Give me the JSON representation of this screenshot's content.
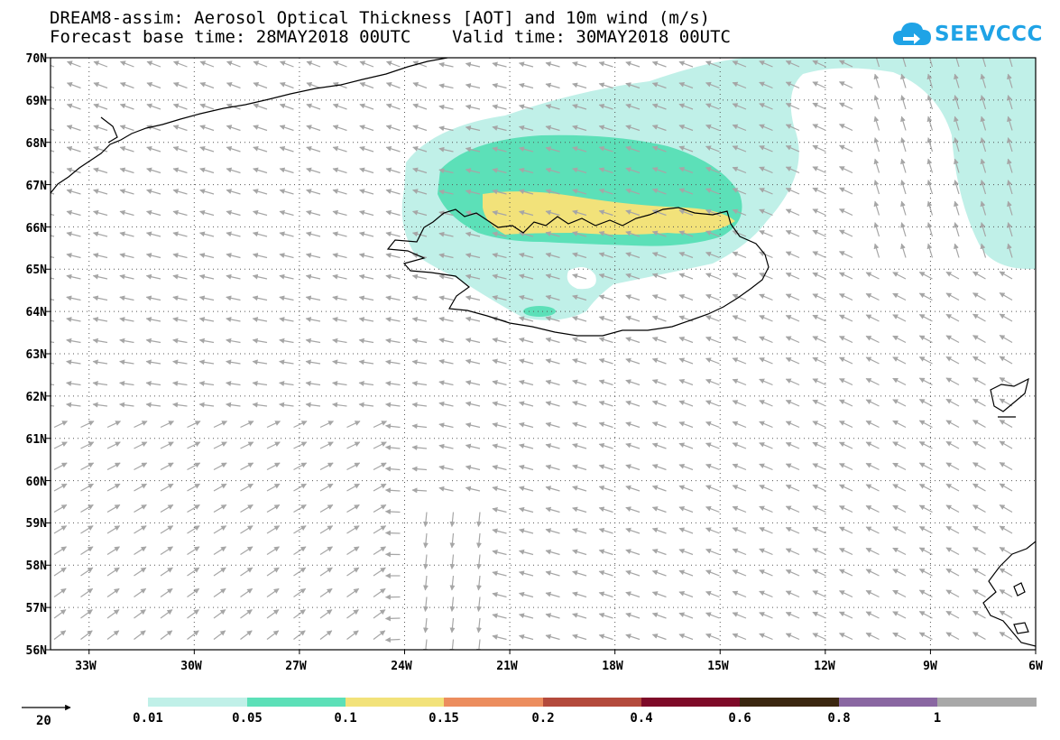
{
  "header": {
    "title_line1": "DREAM8-assim: Aerosol Optical Thickness [AOT] and 10m wind (m/s)",
    "title_line2": "Forecast base time: 28MAY2018 00UTC    Valid time: 30MAY2018 00UTC"
  },
  "logo": {
    "text": "SEEVCCC",
    "color": "#1fa3e6"
  },
  "map": {
    "lat_labels": [
      "70N",
      "69N",
      "68N",
      "67N",
      "66N",
      "65N",
      "64N",
      "63N",
      "62N",
      "61N",
      "60N",
      "59N",
      "58N",
      "57N",
      "56N"
    ],
    "lon_labels": [
      "33W",
      "30W",
      "27W",
      "24W",
      "21W",
      "18W",
      "15W",
      "12W",
      "9W",
      "6W"
    ],
    "lat_range": [
      56,
      70
    ],
    "lon_range": [
      -34.1,
      -6
    ],
    "colors": {
      "coast": "#000000",
      "wind": "#a6a6a6",
      "grid": "#555555"
    }
  },
  "wind_legend": {
    "label": "20"
  },
  "colorbar": {
    "labels": [
      "0.01",
      "0.05",
      "0.1",
      "0.15",
      "0.2",
      "0.4",
      "0.6",
      "0.8",
      "1"
    ],
    "colors": [
      "#c0f0e8",
      "#5ce0b8",
      "#f2e27a",
      "#ec8d5e",
      "#b44a3c",
      "#7e0a28",
      "#3b2710",
      "#8a67a2",
      "#a8a8a8"
    ]
  }
}
